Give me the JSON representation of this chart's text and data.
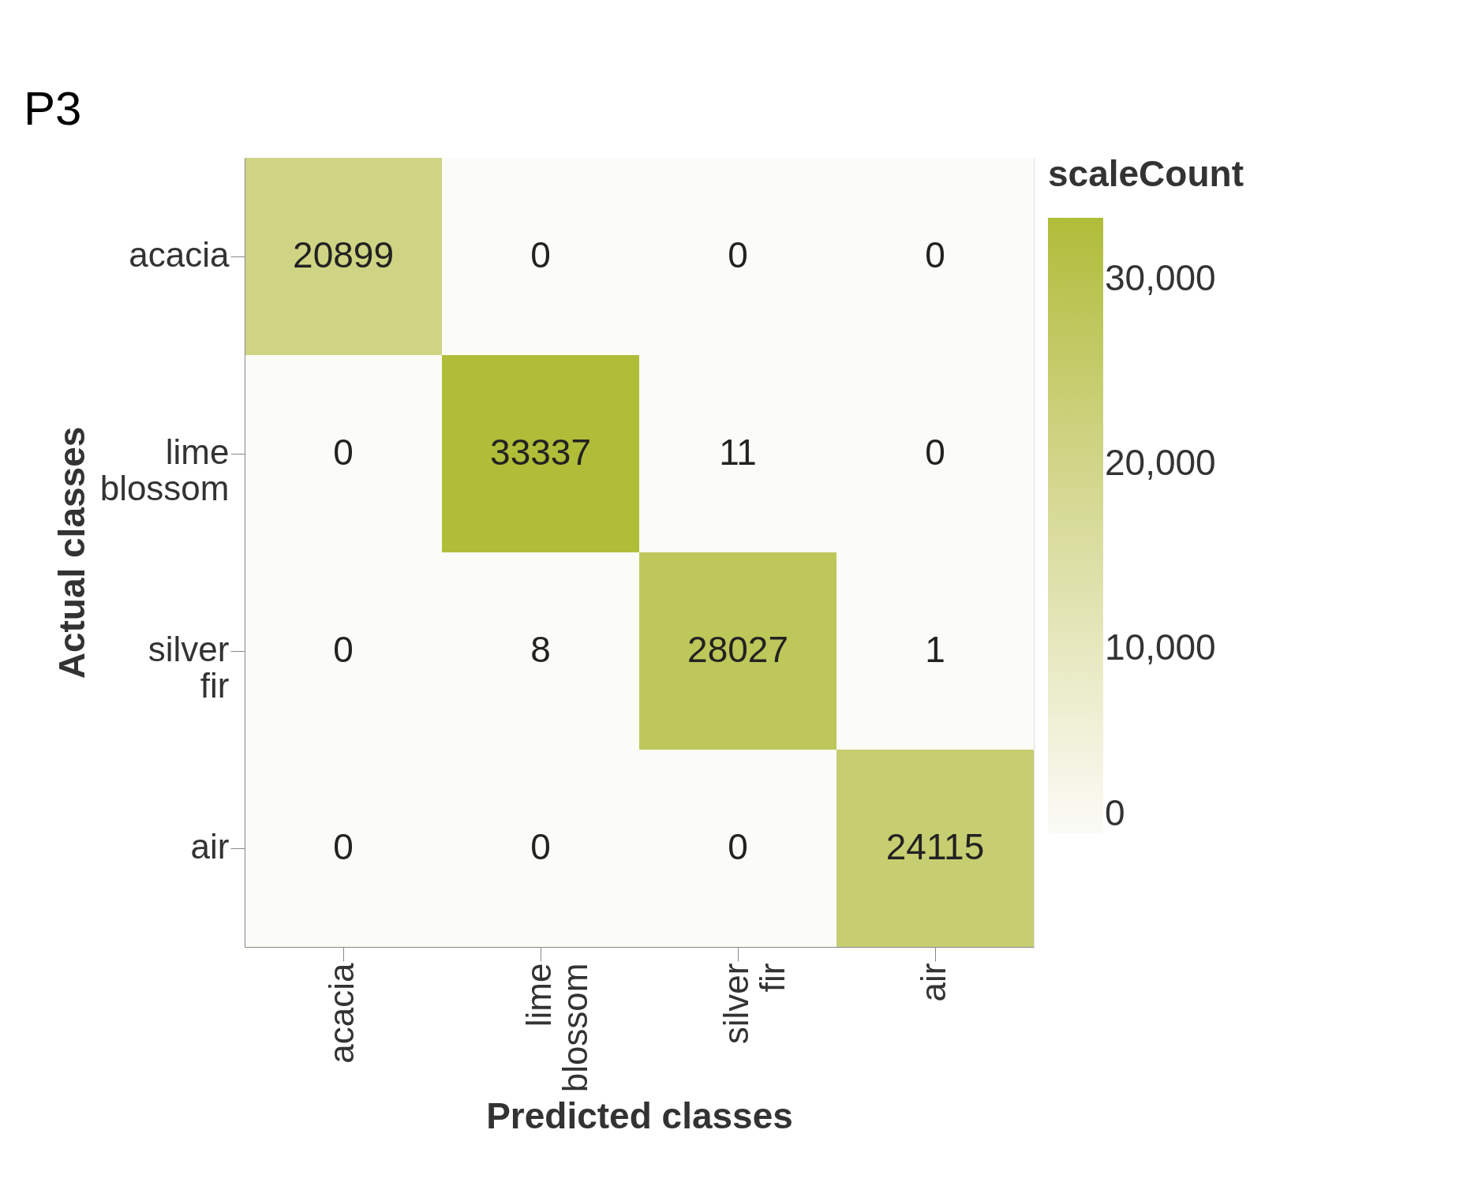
{
  "chart_data": {
    "type": "heatmap",
    "xlabel": "Predicted classes",
    "ylabel": "Actual classes",
    "legend_title": "scaleCount",
    "categories": [
      "acacia",
      "lime blossom",
      "silver fir",
      "air"
    ],
    "y_categories": [
      "acacia",
      "lime blossom",
      "silver fir",
      "air"
    ],
    "cells": [
      [
        20899,
        0,
        0,
        0
      ],
      [
        0,
        33337,
        11,
        0
      ],
      [
        0,
        8,
        28027,
        1
      ],
      [
        0,
        0,
        0,
        24115
      ]
    ],
    "clim": [
      0,
      33337
    ],
    "cticks": [
      0,
      {
        "value": 10000,
        "label": "10,000"
      },
      {
        "value": 20000,
        "label": "20,000"
      },
      {
        "value": 30000,
        "label": "30,000"
      }
    ],
    "colors": [
      "#fbfbf7",
      "#b0bd38"
    ],
    "data_labels": true,
    "grid": false,
    "annotations": [
      "P3"
    ]
  }
}
